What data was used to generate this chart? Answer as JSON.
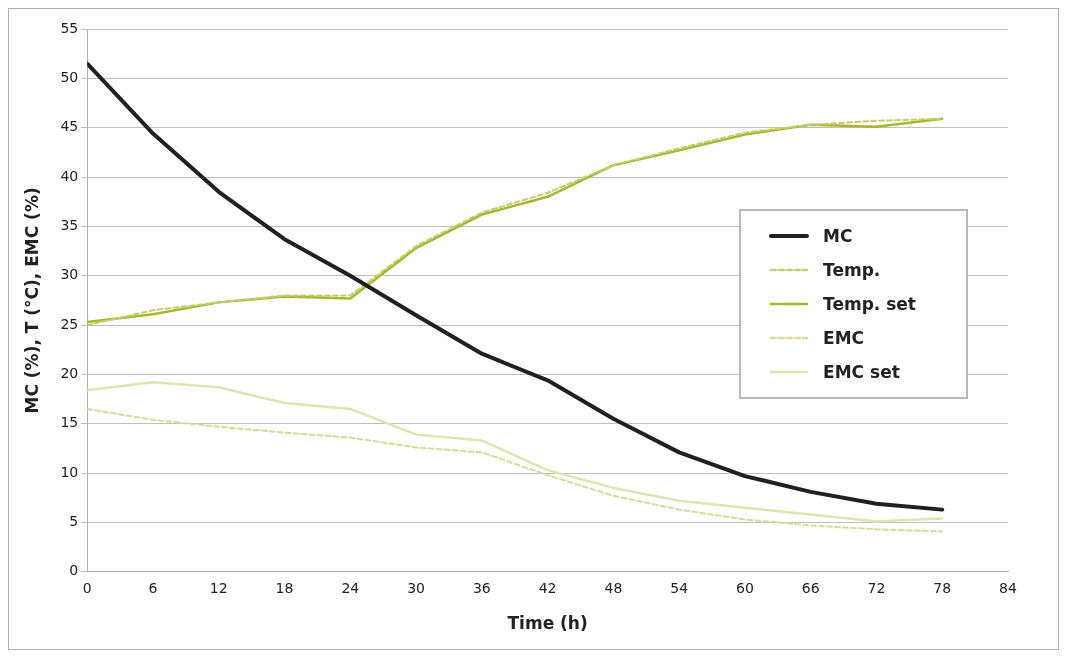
{
  "chart_data": {
    "type": "line",
    "xlabel": "Time (h)",
    "ylabel": "MC (%), T (°C), EMC (%)",
    "x": [
      0,
      6,
      12,
      18,
      24,
      30,
      36,
      42,
      48,
      54,
      60,
      66,
      72,
      78
    ],
    "xlim": [
      0,
      84
    ],
    "xticks": [
      0,
      6,
      12,
      18,
      24,
      30,
      36,
      42,
      48,
      54,
      60,
      66,
      72,
      78,
      84
    ],
    "ylim": [
      0,
      55
    ],
    "yticks": [
      0,
      5,
      10,
      15,
      20,
      25,
      30,
      35,
      40,
      45,
      50,
      55
    ],
    "grid": "y",
    "legend": "right",
    "marker": "none",
    "series": [
      {
        "name": "MC",
        "color": "#231f20",
        "line_style": "solid",
        "values": [
          51.5,
          44.4,
          38.5,
          33.7,
          30.0,
          26.0,
          22.1,
          19.4,
          15.5,
          12.1,
          9.7,
          8.1,
          6.9,
          6.3
        ]
      },
      {
        "name": "Temp.",
        "color": "#c3cf72",
        "line_style": "dashed",
        "values": [
          25.0,
          26.5,
          27.3,
          28.0,
          28.0,
          33.0,
          36.4,
          38.4,
          41.2,
          42.9,
          44.5,
          45.3,
          45.7,
          45.9
        ]
      },
      {
        "name": "Temp. set",
        "color": "#a8b82a",
        "line_style": "solid",
        "values": [
          25.3,
          26.1,
          27.3,
          27.9,
          27.7,
          32.8,
          36.2,
          38.0,
          41.2,
          42.7,
          44.3,
          45.3,
          45.1,
          45.9
        ]
      },
      {
        "name": "EMC",
        "color": "#d6dc9a",
        "line_style": "dashed",
        "values": [
          16.5,
          15.4,
          14.7,
          14.1,
          13.6,
          12.6,
          12.1,
          9.8,
          7.7,
          6.3,
          5.3,
          4.7,
          4.3,
          4.1
        ]
      },
      {
        "name": "EMC set",
        "color": "#e0e4b0",
        "line_style": "solid",
        "values": [
          18.4,
          19.2,
          18.7,
          17.1,
          16.5,
          13.9,
          13.3,
          10.3,
          8.5,
          7.2,
          6.5,
          5.8,
          5.1,
          5.4
        ]
      }
    ]
  }
}
